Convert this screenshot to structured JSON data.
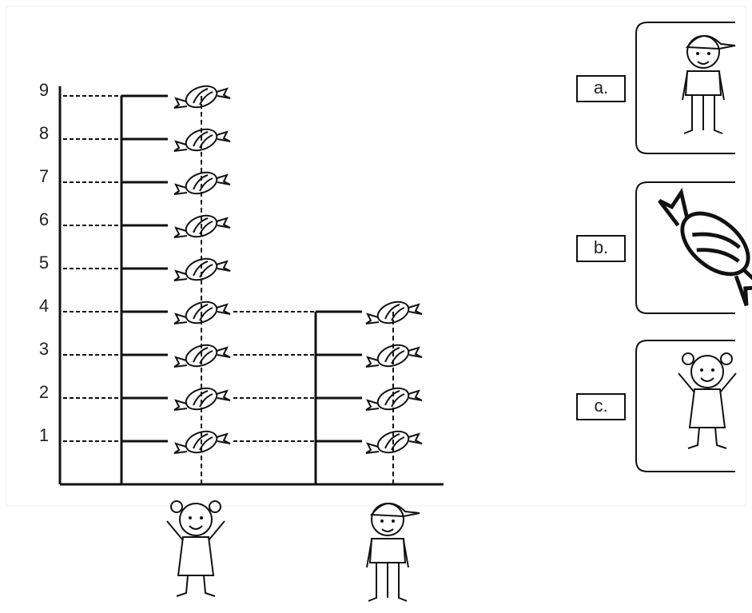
{
  "chart_data": {
    "type": "pictograph",
    "categories": [
      null,
      null
    ],
    "values": [
      9,
      4
    ],
    "ylim": [
      0,
      9
    ],
    "yticks": [
      1,
      2,
      3,
      4,
      5,
      6,
      7,
      8,
      9
    ],
    "grid": true,
    "color": "#111111"
  },
  "options": [
    "a.",
    "b.",
    "c."
  ]
}
